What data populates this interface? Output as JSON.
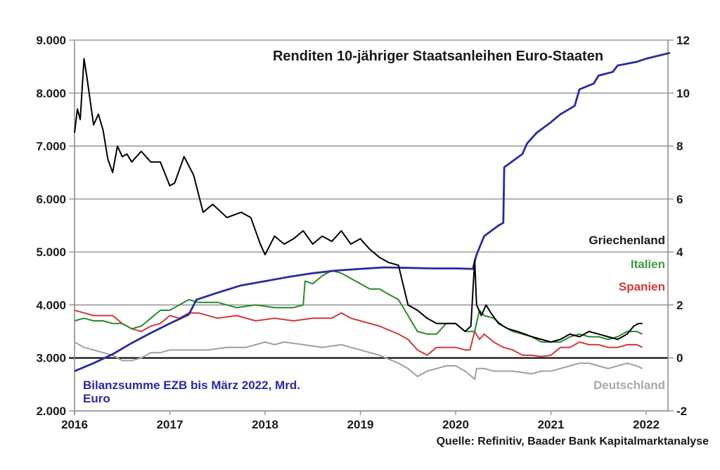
{
  "chart_data": {
    "type": "line",
    "title": "Renditen 10-jähriger Staatsanleihen Euro-Staaten",
    "source": "Quelle: Refinitiv, Baader Bank Kapitalmarktanalyse",
    "xlabel": "",
    "ylabel_left": "",
    "ylabel_right": "",
    "grid": true,
    "x_ticks": [
      "2016",
      "2017",
      "2018",
      "2019",
      "2020",
      "2021",
      "2022"
    ],
    "x_range": [
      2016.0,
      2022.3
    ],
    "y_left": {
      "range": [
        2000,
        9000
      ],
      "ticks": [
        "2.000",
        "3.000",
        "4.000",
        "5.000",
        "6.000",
        "7.000",
        "8.000",
        "9.000"
      ],
      "tick_values": [
        2000,
        3000,
        4000,
        5000,
        6000,
        7000,
        8000,
        9000
      ]
    },
    "y_right": {
      "range": [
        -2,
        12
      ],
      "ticks": [
        "-2",
        "0",
        "2",
        "4",
        "6",
        "8",
        "10",
        "12"
      ],
      "tick_values": [
        -2,
        0,
        2,
        4,
        6,
        8,
        10,
        12
      ]
    },
    "series": [
      {
        "name": "Bilanzsumme EZB bis März 2022, Mrd. Euro",
        "label_lines": [
          "Bilanzsumme EZB bis März 2022, Mrd.",
          "Euro"
        ],
        "axis": "left",
        "color": "#2b2b9c",
        "x": [
          2016.0,
          2016.2,
          2016.4,
          2016.6,
          2016.8,
          2017.0,
          2017.2,
          2017.28,
          2017.5,
          2017.75,
          2018.0,
          2018.25,
          2018.5,
          2018.75,
          2019.0,
          2019.25,
          2019.5,
          2019.75,
          2020.0,
          2020.18,
          2020.22,
          2020.3,
          2020.45,
          2020.5,
          2020.51,
          2020.7,
          2020.75,
          2020.85,
          2021.0,
          2021.1,
          2021.25,
          2021.3,
          2021.45,
          2021.5,
          2021.65,
          2021.7,
          2021.9,
          2022.0,
          2022.25
        ],
        "values": [
          2750,
          2900,
          3070,
          3280,
          3470,
          3650,
          3820,
          4100,
          4230,
          4370,
          4450,
          4530,
          4600,
          4650,
          4680,
          4710,
          4700,
          4690,
          4690,
          4680,
          4950,
          5300,
          5500,
          5550,
          6600,
          6850,
          7050,
          7250,
          7450,
          7600,
          7760,
          8070,
          8180,
          8330,
          8400,
          8520,
          8590,
          8650,
          8760
        ]
      },
      {
        "name": "Griechenland",
        "axis": "right",
        "color": "#000000",
        "x": [
          2016.0,
          2016.03,
          2016.06,
          2016.1,
          2016.13,
          2016.2,
          2016.25,
          2016.3,
          2016.35,
          2016.4,
          2016.45,
          2016.5,
          2016.55,
          2016.6,
          2016.7,
          2016.8,
          2016.9,
          2017.0,
          2017.05,
          2017.15,
          2017.25,
          2017.35,
          2017.45,
          2017.6,
          2017.75,
          2017.85,
          2017.95,
          2018.0,
          2018.1,
          2018.2,
          2018.3,
          2018.4,
          2018.5,
          2018.6,
          2018.7,
          2018.8,
          2018.9,
          2019.0,
          2019.1,
          2019.2,
          2019.3,
          2019.4,
          2019.5,
          2019.6,
          2019.7,
          2019.8,
          2019.9,
          2020.0,
          2020.1,
          2020.16,
          2020.2,
          2020.22,
          2020.27,
          2020.32,
          2020.37,
          2020.45,
          2020.55,
          2020.65,
          2020.8,
          2020.9,
          2021.0,
          2021.1,
          2021.2,
          2021.3,
          2021.4,
          2021.5,
          2021.6,
          2021.7,
          2021.8,
          2021.87,
          2021.92,
          2021.96
        ],
        "values": [
          8.5,
          9.4,
          9.0,
          11.3,
          10.6,
          8.8,
          9.2,
          8.6,
          7.5,
          7.0,
          8.0,
          7.6,
          7.7,
          7.4,
          7.8,
          7.4,
          7.4,
          6.5,
          6.6,
          7.6,
          6.9,
          5.5,
          5.8,
          5.3,
          5.5,
          5.3,
          4.3,
          3.9,
          4.6,
          4.3,
          4.5,
          4.8,
          4.3,
          4.6,
          4.4,
          4.8,
          4.3,
          4.5,
          4.1,
          3.8,
          3.6,
          3.5,
          2.0,
          1.8,
          1.5,
          1.3,
          1.3,
          1.3,
          1.0,
          1.2,
          3.7,
          2.0,
          1.6,
          2.0,
          1.7,
          1.3,
          1.1,
          1.0,
          0.8,
          0.7,
          0.6,
          0.7,
          0.9,
          0.8,
          1.0,
          0.9,
          0.8,
          0.7,
          0.9,
          1.2,
          1.3,
          1.3
        ]
      },
      {
        "name": "Italien",
        "axis": "right",
        "color": "#2a8a2a",
        "x": [
          2016.0,
          2016.1,
          2016.2,
          2016.3,
          2016.4,
          2016.5,
          2016.6,
          2016.7,
          2016.8,
          2016.9,
          2017.0,
          2017.1,
          2017.2,
          2017.3,
          2017.5,
          2017.7,
          2017.9,
          2018.1,
          2018.3,
          2018.4,
          2018.42,
          2018.5,
          2018.6,
          2018.7,
          2018.8,
          2018.9,
          2019.0,
          2019.1,
          2019.2,
          2019.3,
          2019.4,
          2019.5,
          2019.6,
          2019.7,
          2019.8,
          2019.9,
          2020.0,
          2020.1,
          2020.2,
          2020.25,
          2020.3,
          2020.4,
          2020.5,
          2020.6,
          2020.7,
          2020.8,
          2020.9,
          2021.0,
          2021.1,
          2021.2,
          2021.3,
          2021.4,
          2021.5,
          2021.6,
          2021.7,
          2021.8,
          2021.9,
          2021.96
        ],
        "values": [
          1.4,
          1.5,
          1.4,
          1.4,
          1.3,
          1.3,
          1.1,
          1.2,
          1.5,
          1.8,
          1.8,
          2.0,
          2.2,
          2.1,
          2.1,
          1.9,
          2.0,
          1.9,
          1.9,
          2.0,
          2.9,
          2.8,
          3.1,
          3.3,
          3.2,
          3.0,
          2.8,
          2.6,
          2.6,
          2.4,
          2.2,
          1.6,
          1.0,
          0.9,
          0.9,
          1.3,
          1.3,
          1.0,
          1.0,
          1.8,
          1.6,
          1.5,
          1.2,
          1.0,
          0.9,
          0.8,
          0.6,
          0.6,
          0.6,
          0.8,
          0.9,
          0.8,
          0.8,
          0.7,
          0.8,
          1.0,
          1.0,
          0.9
        ]
      },
      {
        "name": "Spanien",
        "axis": "right",
        "color": "#d23a3a",
        "x": [
          2016.0,
          2016.1,
          2016.2,
          2016.3,
          2016.4,
          2016.5,
          2016.6,
          2016.7,
          2016.8,
          2016.9,
          2017.0,
          2017.1,
          2017.2,
          2017.3,
          2017.5,
          2017.7,
          2017.9,
          2018.1,
          2018.3,
          2018.5,
          2018.7,
          2018.8,
          2018.9,
          2019.0,
          2019.2,
          2019.4,
          2019.5,
          2019.6,
          2019.7,
          2019.8,
          2019.9,
          2020.0,
          2020.1,
          2020.15,
          2020.2,
          2020.25,
          2020.3,
          2020.4,
          2020.5,
          2020.6,
          2020.7,
          2020.8,
          2020.9,
          2021.0,
          2021.1,
          2021.2,
          2021.3,
          2021.4,
          2021.5,
          2021.6,
          2021.7,
          2021.8,
          2021.9,
          2021.96
        ],
        "values": [
          1.8,
          1.7,
          1.6,
          1.6,
          1.6,
          1.3,
          1.1,
          1.0,
          1.2,
          1.3,
          1.6,
          1.5,
          1.7,
          1.7,
          1.5,
          1.6,
          1.4,
          1.5,
          1.4,
          1.5,
          1.5,
          1.7,
          1.5,
          1.4,
          1.2,
          0.9,
          0.7,
          0.3,
          0.1,
          0.4,
          0.4,
          0.4,
          0.3,
          0.3,
          1.0,
          0.7,
          0.9,
          0.6,
          0.4,
          0.3,
          0.1,
          0.1,
          0.05,
          0.1,
          0.4,
          0.4,
          0.6,
          0.5,
          0.5,
          0.4,
          0.4,
          0.5,
          0.5,
          0.4
        ]
      },
      {
        "name": "Deutschland",
        "axis": "right",
        "color": "#a0a0a0",
        "x": [
          2016.0,
          2016.1,
          2016.2,
          2016.3,
          2016.4,
          2016.5,
          2016.6,
          2016.7,
          2016.8,
          2016.9,
          2017.0,
          2017.2,
          2017.4,
          2017.6,
          2017.8,
          2018.0,
          2018.1,
          2018.2,
          2018.4,
          2018.6,
          2018.8,
          2018.9,
          2019.0,
          2019.2,
          2019.4,
          2019.5,
          2019.6,
          2019.7,
          2019.8,
          2019.9,
          2020.0,
          2020.1,
          2020.2,
          2020.22,
          2020.3,
          2020.4,
          2020.6,
          2020.8,
          2020.9,
          2021.0,
          2021.1,
          2021.2,
          2021.3,
          2021.4,
          2021.5,
          2021.6,
          2021.7,
          2021.8,
          2021.9,
          2021.96
        ],
        "values": [
          0.6,
          0.4,
          0.3,
          0.2,
          0.1,
          -0.1,
          -0.1,
          0.0,
          0.2,
          0.2,
          0.3,
          0.3,
          0.3,
          0.4,
          0.4,
          0.6,
          0.5,
          0.6,
          0.5,
          0.4,
          0.5,
          0.4,
          0.3,
          0.1,
          -0.2,
          -0.4,
          -0.7,
          -0.5,
          -0.4,
          -0.3,
          -0.3,
          -0.5,
          -0.8,
          -0.4,
          -0.4,
          -0.5,
          -0.5,
          -0.6,
          -0.5,
          -0.5,
          -0.4,
          -0.3,
          -0.2,
          -0.2,
          -0.3,
          -0.4,
          -0.3,
          -0.2,
          -0.3,
          -0.4
        ]
      }
    ],
    "legend": [
      {
        "label": "Griechenland",
        "color": "#1a1a1a"
      },
      {
        "label": "Italien",
        "color": "#3f9a3f"
      },
      {
        "label": "Spanien",
        "color": "#d0383d"
      },
      {
        "label": "Deutschland",
        "color": "#a8a8a8"
      }
    ],
    "legend_placement": "right"
  }
}
